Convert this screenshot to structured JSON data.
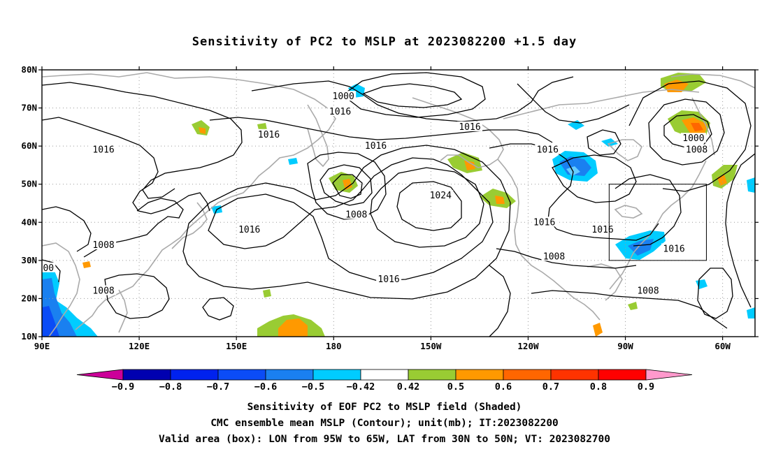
{
  "title": "Sensitivity of PC2 to MSLP at 2023082200 +1.5 day",
  "captions": [
    "Sensitivity of EOF PC2 to MSLP field (Shaded)",
    "CMC ensemble mean MSLP (Contour); unit(mb); IT:2023082200",
    "Valid area (box): LON from 95W to 65W, LAT from 30N to 50N; VT: 2023082700"
  ],
  "map": {
    "lon_range": [
      90,
      310
    ],
    "lat_range": [
      10,
      80
    ],
    "lat_ticks": [
      {
        "value": 80,
        "label": "80N"
      },
      {
        "value": 70,
        "label": "70N"
      },
      {
        "value": 60,
        "label": "60N"
      },
      {
        "value": 50,
        "label": "50N"
      },
      {
        "value": 40,
        "label": "40N"
      },
      {
        "value": 30,
        "label": "30N"
      },
      {
        "value": 20,
        "label": "20N"
      },
      {
        "value": 10,
        "label": "10N"
      }
    ],
    "lon_ticks": [
      {
        "value": 90,
        "label": "90E"
      },
      {
        "value": 120,
        "label": "120E"
      },
      {
        "value": 150,
        "label": "150E"
      },
      {
        "value": 180,
        "label": "180"
      },
      {
        "value": 210,
        "label": "150W"
      },
      {
        "value": 240,
        "label": "120W"
      },
      {
        "value": 270,
        "label": "90W"
      },
      {
        "value": 300,
        "label": "60W"
      }
    ],
    "grid": true,
    "valid_box": {
      "lon_min": 265,
      "lon_max": 295,
      "lat_min": 30,
      "lat_max": 50
    },
    "contour_labels": [
      {
        "text": "1000",
        "lon": 183,
        "lat": 73
      },
      {
        "text": "1016",
        "lon": 182,
        "lat": 69
      },
      {
        "text": "1016",
        "lon": 222,
        "lat": 65
      },
      {
        "text": "1016",
        "lon": 160,
        "lat": 63
      },
      {
        "text": "1016",
        "lon": 109,
        "lat": 59
      },
      {
        "text": "1016",
        "lon": 193,
        "lat": 60
      },
      {
        "text": "1016",
        "lon": 246,
        "lat": 59
      },
      {
        "text": "1000",
        "lon": 291,
        "lat": 62
      },
      {
        "text": "1008",
        "lon": 292,
        "lat": 59
      },
      {
        "text": "1024",
        "lon": 213,
        "lat": 47
      },
      {
        "text": "1008",
        "lon": 187,
        "lat": 42
      },
      {
        "text": "1016",
        "lon": 154,
        "lat": 38
      },
      {
        "text": "1016",
        "lon": 245,
        "lat": 40
      },
      {
        "text": "1016",
        "lon": 263,
        "lat": 38
      },
      {
        "text": "1016",
        "lon": 285,
        "lat": 33
      },
      {
        "text": "1008",
        "lon": 109,
        "lat": 34
      },
      {
        "text": "1008",
        "lon": 248,
        "lat": 31
      },
      {
        "text": "00",
        "lon": 92,
        "lat": 28
      },
      {
        "text": "1016",
        "lon": 197,
        "lat": 25
      },
      {
        "text": "1008",
        "lon": 109,
        "lat": 22
      },
      {
        "text": "1008",
        "lon": 277,
        "lat": 22
      }
    ]
  },
  "colorbar": {
    "levels": [
      "-0.9",
      "-0.8",
      "-0.7",
      "-0.6",
      "-0.5",
      "-0.42",
      "0.42",
      "0.5",
      "0.6",
      "0.7",
      "0.8",
      "0.9"
    ],
    "colors": [
      "#cc0099",
      "#0000b0",
      "#0022ee",
      "#0b4cf6",
      "#1a80f0",
      "#00ccff",
      "#ffffff",
      "#99cc33",
      "#ff9900",
      "#ff6600",
      "#ff3300",
      "#ff0000",
      "#ff99cc"
    ]
  }
}
